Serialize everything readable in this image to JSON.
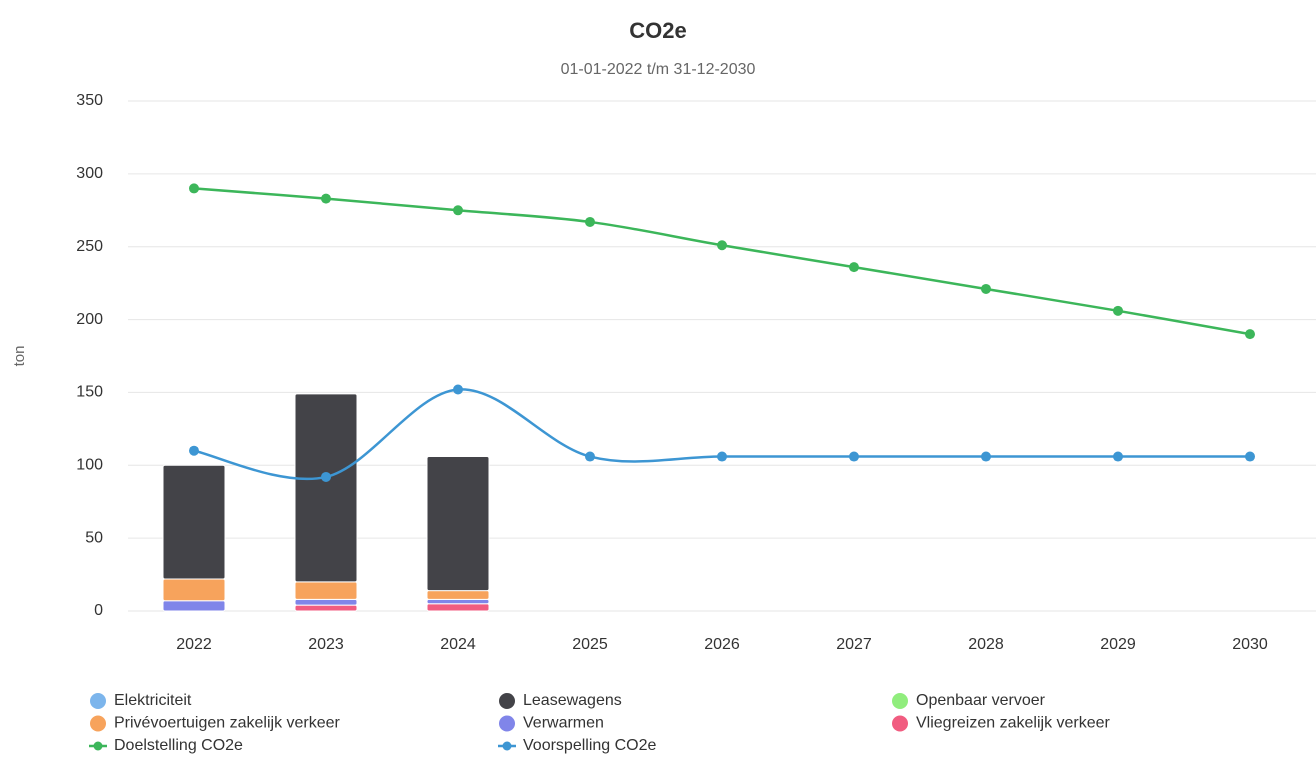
{
  "chart_data": {
    "type": "bar",
    "title": "CO2e",
    "subtitle": "01-01-2022 t/m 31-12-2030",
    "y_label": "ton",
    "categories": [
      "2022",
      "2023",
      "2024",
      "2025",
      "2026",
      "2027",
      "2028",
      "2029",
      "2030"
    ],
    "ylim": [
      0,
      350
    ],
    "yticks": [
      0,
      50,
      100,
      150,
      200,
      250,
      300,
      350
    ],
    "grid": true,
    "stacked": true,
    "legend": "bottom",
    "series": [
      {
        "name": "Elektriciteit",
        "type": "column",
        "color": "#7cb5ec",
        "values": [
          0,
          0,
          0,
          null,
          null,
          null,
          null,
          null,
          null
        ]
      },
      {
        "name": "Leasewagens",
        "type": "column",
        "color": "#434348",
        "values": [
          78,
          129,
          92,
          null,
          null,
          null,
          null,
          null,
          null
        ]
      },
      {
        "name": "Openbaar vervoer",
        "type": "column",
        "color": "#90ed7d",
        "values": [
          0,
          0,
          0,
          null,
          null,
          null,
          null,
          null,
          null
        ]
      },
      {
        "name": "Privévoertuigen zakelijk verkeer",
        "type": "column",
        "color": "#f7a35c",
        "values": [
          15,
          12,
          6,
          null,
          null,
          null,
          null,
          null,
          null
        ]
      },
      {
        "name": "Verwarmen",
        "type": "column",
        "color": "#8085e9",
        "values": [
          7,
          4,
          3,
          null,
          null,
          null,
          null,
          null,
          null
        ]
      },
      {
        "name": "Vliegreizen zakelijk verkeer",
        "type": "column",
        "color": "#f15c80",
        "values": [
          0,
          4,
          5,
          null,
          null,
          null,
          null,
          null,
          null
        ]
      },
      {
        "name": "Doelstelling CO2e",
        "type": "line",
        "color": "#3cb65a",
        "values": [
          290,
          283,
          275,
          267,
          251,
          236,
          221,
          206,
          190
        ]
      },
      {
        "name": "Voorspelling CO2e",
        "type": "line",
        "color": "#3d96d3",
        "values": [
          110,
          92,
          152,
          106,
          106,
          106,
          106,
          106,
          106
        ]
      }
    ]
  }
}
